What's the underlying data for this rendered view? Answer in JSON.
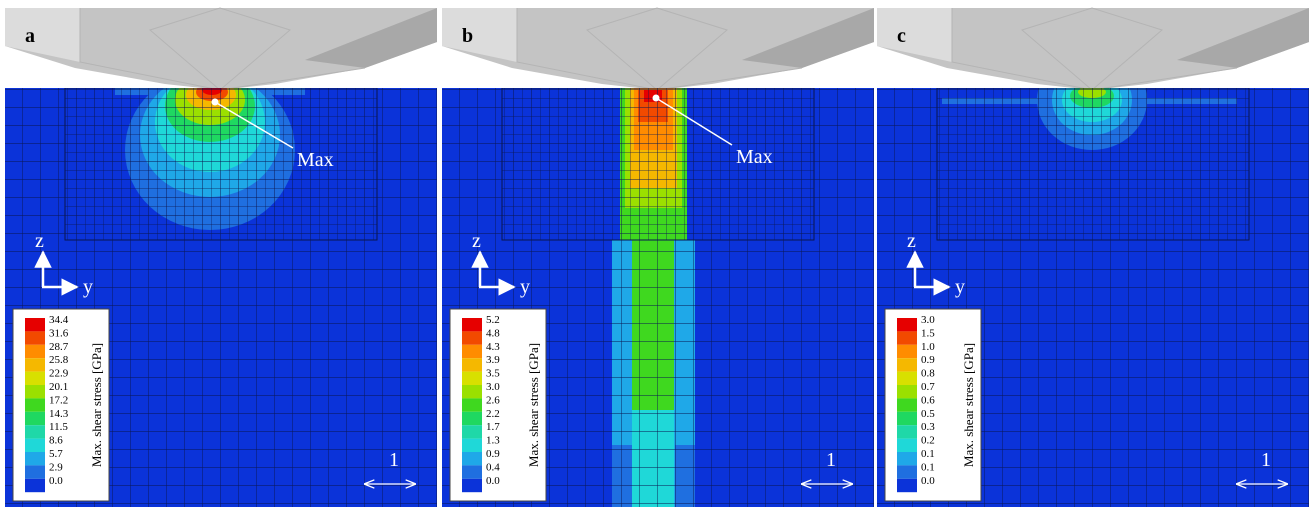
{
  "panels": [
    {
      "label": "a",
      "annotation": "Max",
      "axis_z": "z",
      "axis_y": "y",
      "scale": "1",
      "legend_title": "Max. shear stress [GPa]",
      "legend_ticks": [
        "34.4",
        "31.6",
        "28.7",
        "25.8",
        "22.9",
        "20.1",
        "17.2",
        "14.3",
        "11.5",
        "8.6",
        "5.7",
        "2.9",
        "0.0"
      ]
    },
    {
      "label": "b",
      "annotation": "Max",
      "axis_z": "z",
      "axis_y": "y",
      "scale": "1",
      "legend_title": "Max. shear stress [GPa]",
      "legend_ticks": [
        "5.2",
        "4.8",
        "4.3",
        "3.9",
        "3.5",
        "3.0",
        "2.6",
        "2.2",
        "1.7",
        "1.3",
        "0.9",
        "0.4",
        "0.0"
      ]
    },
    {
      "label": "c",
      "axis_z": "z",
      "axis_y": "y",
      "scale": "1",
      "legend_title": "Max. shear stress [GPa]",
      "legend_ticks": [
        "3.0",
        "1.5",
        "1.0",
        "0.9",
        "0.8",
        "0.7",
        "0.6",
        "0.5",
        "0.3",
        "0.2",
        "0.1",
        "0.1",
        "0.0"
      ]
    }
  ]
}
